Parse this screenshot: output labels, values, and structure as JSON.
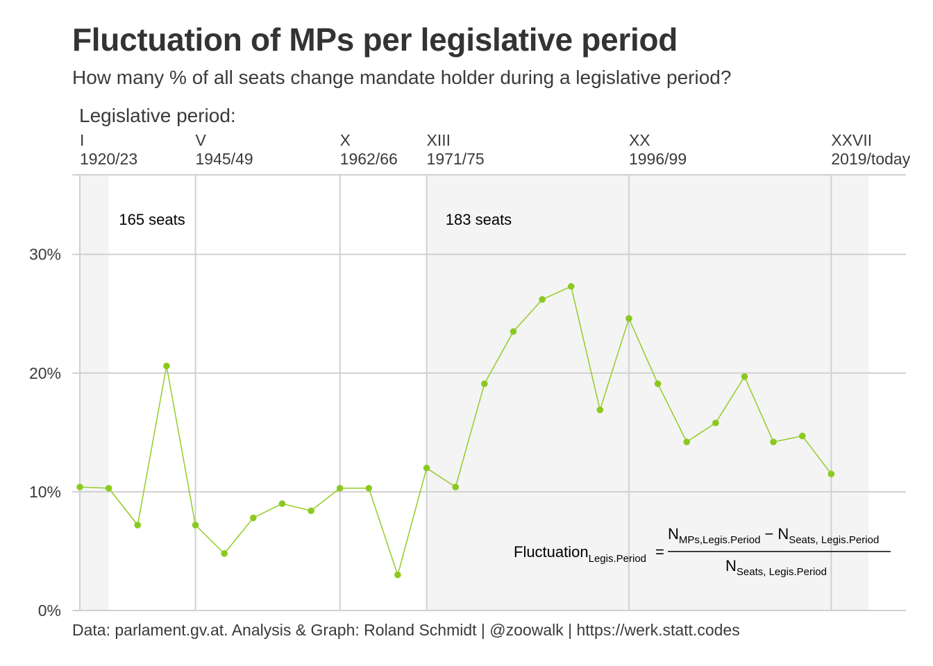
{
  "title": "Fluctuation of MPs per legislative period",
  "subtitle": "How many % of all seats change mandate holder during a legislative period?",
  "caption": "Data: parlament.gv.at. Analysis & Graph: Roland Schmidt | @zoowalk | https://werk.statt.codes",
  "chart_data": {
    "type": "line",
    "top_axis_title": "Legislative period:",
    "x": [
      1,
      2,
      3,
      4,
      5,
      6,
      7,
      8,
      9,
      10,
      11,
      12,
      13,
      14,
      15,
      16,
      17,
      18,
      19,
      20,
      21,
      22,
      23,
      24,
      25,
      26,
      27
    ],
    "values": [
      10.4,
      10.3,
      7.2,
      20.6,
      7.2,
      4.8,
      7.8,
      9.0,
      8.4,
      10.3,
      10.3,
      3.0,
      12.0,
      10.4,
      19.1,
      23.5,
      26.2,
      27.3,
      16.9,
      24.6,
      19.1,
      14.2,
      15.8,
      19.7,
      14.2,
      14.7,
      11.5
    ],
    "xlim": [
      1,
      28.3
    ],
    "ylim": [
      0,
      36.7
    ],
    "y_ticks": [
      {
        "value": 0,
        "label": "0%"
      },
      {
        "value": 10,
        "label": "10%"
      },
      {
        "value": 20,
        "label": "20%"
      },
      {
        "value": 30,
        "label": "30%"
      }
    ],
    "x_ticks": [
      {
        "value": 1,
        "numeral": "I",
        "years": "1920/23"
      },
      {
        "value": 5,
        "numeral": "V",
        "years": "1945/49"
      },
      {
        "value": 10,
        "numeral": "X",
        "years": "1962/66"
      },
      {
        "value": 13,
        "numeral": "XIII",
        "years": "1971/75"
      },
      {
        "value": 20,
        "numeral": "XX",
        "years": "1996/99"
      },
      {
        "value": 27,
        "numeral": "XXVII",
        "years": "2019/today"
      }
    ],
    "shaded_ranges": [
      {
        "from": 1,
        "to": 2
      },
      {
        "from": 13,
        "to": 28.3
      }
    ],
    "annotations": [
      {
        "text": "165 seats",
        "x": 3.5,
        "y": 32.5
      },
      {
        "text": "183 seats",
        "x": 14.8,
        "y": 32.5
      }
    ],
    "formula": {
      "lhs": "Fluctuation",
      "lhs_sub": "Legis.Period",
      "equals": "=",
      "num_a": "N",
      "num_a_sub": "MPs,Legis.Period",
      "minus": "−",
      "num_b": "N",
      "num_b_sub": "Seats, Legis.Period",
      "den": "N",
      "den_sub": "Seats, Legis.Period"
    },
    "grid": true,
    "colors": {
      "line": "#9acd32",
      "point": "#8cc920",
      "grid": "#d0d0d0",
      "shade": "#f4f4f4"
    }
  }
}
